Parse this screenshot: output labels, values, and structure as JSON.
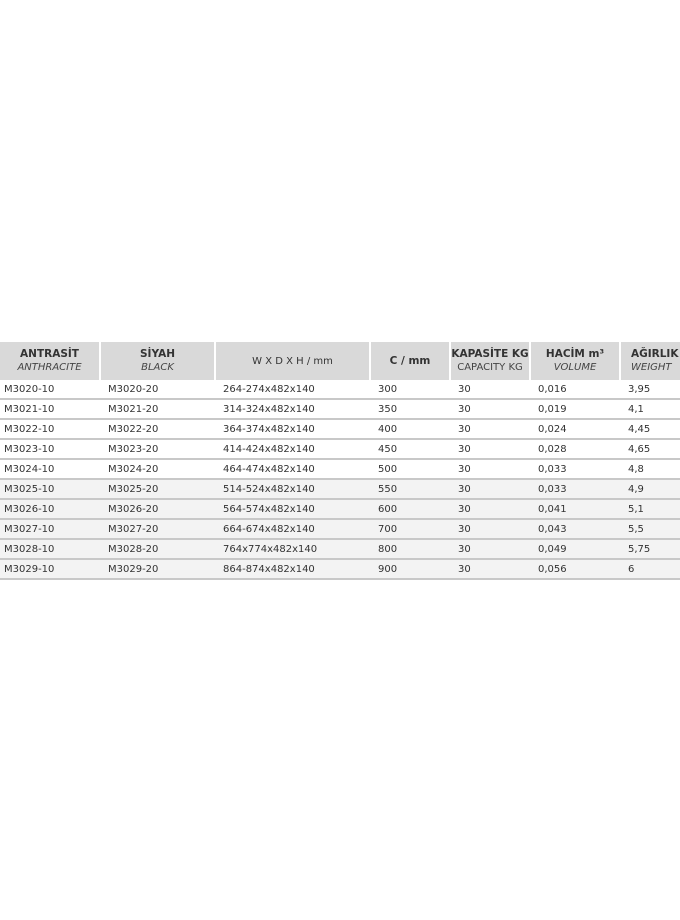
{
  "table": {
    "headers": [
      {
        "tr": "ANTRASİT",
        "en": "ANTHRACITE"
      },
      {
        "tr": "SİYAH",
        "en": "BLACK"
      },
      {
        "tr": "W X D X H / mm",
        "en": ""
      },
      {
        "tr": "C / mm",
        "en": ""
      },
      {
        "tr": "KAPASİTE KG",
        "en": "CAPACITY KG"
      },
      {
        "tr": "HACİM m³",
        "en": "VOLUME"
      },
      {
        "tr": "AĞIRLIK",
        "en": "WEIGHT"
      }
    ],
    "rows": [
      [
        "M3020-10",
        "M3020-20",
        "264-274x482x140",
        "300",
        "30",
        "0,016",
        "3,95"
      ],
      [
        "M3021-10",
        "M3021-20",
        "314-324x482x140",
        "350",
        "30",
        "0,019",
        "4,1"
      ],
      [
        "M3022-10",
        "M3022-20",
        "364-374x482x140",
        "400",
        "30",
        "0,024",
        "4,45"
      ],
      [
        "M3023-10",
        "M3023-20",
        "414-424x482x140",
        "450",
        "30",
        "0,028",
        "4,65"
      ],
      [
        "M3024-10",
        "M3024-20",
        "464-474x482x140",
        "500",
        "30",
        "0,033",
        "4,8"
      ],
      [
        "M3025-10",
        "M3025-20",
        "514-524x482x140",
        "550",
        "30",
        "0,033",
        "4,9"
      ],
      [
        "M3026-10",
        "M3026-20",
        "564-574x482x140",
        "600",
        "30",
        "0,041",
        "5,1"
      ],
      [
        "M3027-10",
        "M3027-20",
        "664-674x482x140",
        "700",
        "30",
        "0,043",
        "5,5"
      ],
      [
        "M3028-10",
        "M3028-20",
        "764x774x482x140",
        "800",
        "30",
        "0,049",
        "5,75"
      ],
      [
        "M3029-10",
        "M3029-20",
        "864-874x482x140",
        "900",
        "30",
        "0,056",
        "6"
      ]
    ]
  }
}
